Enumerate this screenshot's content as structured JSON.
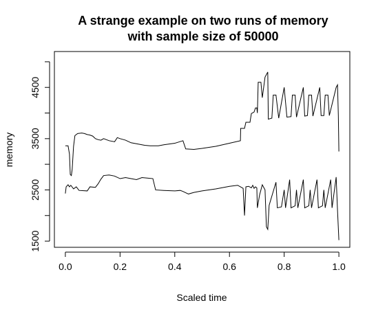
{
  "chart_data": {
    "type": "line",
    "title_lines": [
      "A strange example on two runs of memory",
      "with sample size of 50000"
    ],
    "xlabel": "Scaled time",
    "ylabel": "memory",
    "xlim": [
      -0.04,
      1.04
    ],
    "ylim": [
      1380,
      5200
    ],
    "x_ticks": [
      0.0,
      0.2,
      0.4,
      0.6,
      0.8,
      1.0
    ],
    "x_tick_labels": [
      "0.0",
      "0.2",
      "0.4",
      "0.6",
      "0.8",
      "1.0"
    ],
    "y_ticks": [
      1500,
      2000,
      2500,
      3000,
      3500,
      4000,
      4500,
      5000
    ],
    "y_tick_labels": [
      "1500",
      "",
      "2500",
      "",
      "3500",
      "",
      "4500",
      ""
    ],
    "grid": false,
    "legend": "none",
    "series": [
      {
        "values": [
          [
            0.0,
            3360
          ],
          [
            0.01,
            3360
          ],
          [
            0.015,
            3200
          ],
          [
            0.018,
            2800
          ],
          [
            0.022,
            2780
          ],
          [
            0.025,
            2900
          ],
          [
            0.03,
            3350
          ],
          [
            0.035,
            3560
          ],
          [
            0.045,
            3600
          ],
          [
            0.06,
            3610
          ],
          [
            0.07,
            3600
          ],
          [
            0.08,
            3580
          ],
          [
            0.09,
            3570
          ],
          [
            0.1,
            3550
          ],
          [
            0.11,
            3500
          ],
          [
            0.12,
            3480
          ],
          [
            0.13,
            3470
          ],
          [
            0.14,
            3500
          ],
          [
            0.15,
            3480
          ],
          [
            0.16,
            3460
          ],
          [
            0.18,
            3440
          ],
          [
            0.19,
            3520
          ],
          [
            0.2,
            3500
          ],
          [
            0.22,
            3470
          ],
          [
            0.24,
            3420
          ],
          [
            0.26,
            3400
          ],
          [
            0.29,
            3370
          ],
          [
            0.31,
            3360
          ],
          [
            0.34,
            3360
          ],
          [
            0.36,
            3380
          ],
          [
            0.4,
            3410
          ],
          [
            0.43,
            3460
          ],
          [
            0.44,
            3300
          ],
          [
            0.47,
            3290
          ],
          [
            0.5,
            3310
          ],
          [
            0.55,
            3350
          ],
          [
            0.6,
            3410
          ],
          [
            0.64,
            3460
          ],
          [
            0.641,
            3700
          ],
          [
            0.655,
            3700
          ],
          [
            0.66,
            3820
          ],
          [
            0.675,
            3820
          ],
          [
            0.68,
            3990
          ],
          [
            0.69,
            4020
          ],
          [
            0.695,
            4100
          ],
          [
            0.7,
            4100
          ],
          [
            0.702,
            4000
          ],
          [
            0.705,
            4600
          ],
          [
            0.715,
            4600
          ],
          [
            0.72,
            4300
          ],
          [
            0.73,
            4700
          ],
          [
            0.74,
            4800
          ],
          [
            0.742,
            3880
          ],
          [
            0.755,
            3900
          ],
          [
            0.76,
            4350
          ],
          [
            0.77,
            4350
          ],
          [
            0.78,
            3900
          ],
          [
            0.8,
            4500
          ],
          [
            0.81,
            3920
          ],
          [
            0.825,
            3930
          ],
          [
            0.83,
            4350
          ],
          [
            0.84,
            4350
          ],
          [
            0.845,
            3920
          ],
          [
            0.87,
            4500
          ],
          [
            0.875,
            3940
          ],
          [
            0.885,
            3950
          ],
          [
            0.89,
            4350
          ],
          [
            0.9,
            4350
          ],
          [
            0.905,
            3940
          ],
          [
            0.93,
            4500
          ],
          [
            0.935,
            3950
          ],
          [
            0.945,
            3950
          ],
          [
            0.95,
            4350
          ],
          [
            0.96,
            4350
          ],
          [
            0.965,
            3950
          ],
          [
            0.99,
            4500
          ],
          [
            0.995,
            4550
          ],
          [
            0.998,
            3950
          ],
          [
            1.0,
            3250
          ]
        ]
      },
      {
        "values": [
          [
            0.0,
            2430
          ],
          [
            0.003,
            2560
          ],
          [
            0.01,
            2600
          ],
          [
            0.015,
            2560
          ],
          [
            0.02,
            2590
          ],
          [
            0.03,
            2520
          ],
          [
            0.04,
            2560
          ],
          [
            0.05,
            2490
          ],
          [
            0.08,
            2480
          ],
          [
            0.09,
            2560
          ],
          [
            0.11,
            2550
          ],
          [
            0.12,
            2620
          ],
          [
            0.13,
            2710
          ],
          [
            0.14,
            2780
          ],
          [
            0.16,
            2790
          ],
          [
            0.18,
            2770
          ],
          [
            0.2,
            2720
          ],
          [
            0.22,
            2740
          ],
          [
            0.24,
            2720
          ],
          [
            0.26,
            2700
          ],
          [
            0.28,
            2740
          ],
          [
            0.3,
            2730
          ],
          [
            0.32,
            2720
          ],
          [
            0.33,
            2500
          ],
          [
            0.36,
            2490
          ],
          [
            0.4,
            2480
          ],
          [
            0.42,
            2490
          ],
          [
            0.43,
            2470
          ],
          [
            0.45,
            2420
          ],
          [
            0.47,
            2450
          ],
          [
            0.5,
            2480
          ],
          [
            0.55,
            2520
          ],
          [
            0.6,
            2570
          ],
          [
            0.63,
            2590
          ],
          [
            0.64,
            2560
          ],
          [
            0.65,
            2530
          ],
          [
            0.655,
            2000
          ],
          [
            0.66,
            2560
          ],
          [
            0.67,
            2570
          ],
          [
            0.68,
            2540
          ],
          [
            0.685,
            2590
          ],
          [
            0.69,
            2530
          ],
          [
            0.695,
            2560
          ],
          [
            0.7,
            2540
          ],
          [
            0.702,
            2150
          ],
          [
            0.71,
            2400
          ],
          [
            0.72,
            2600
          ],
          [
            0.73,
            2500
          ],
          [
            0.735,
            1780
          ],
          [
            0.74,
            1730
          ],
          [
            0.745,
            2200
          ],
          [
            0.77,
            2650
          ],
          [
            0.775,
            2150
          ],
          [
            0.79,
            2170
          ],
          [
            0.8,
            2500
          ],
          [
            0.805,
            2150
          ],
          [
            0.82,
            2700
          ],
          [
            0.825,
            2150
          ],
          [
            0.84,
            2190
          ],
          [
            0.845,
            2500
          ],
          [
            0.85,
            2150
          ],
          [
            0.87,
            2700
          ],
          [
            0.875,
            2150
          ],
          [
            0.89,
            2190
          ],
          [
            0.895,
            2500
          ],
          [
            0.9,
            2150
          ],
          [
            0.92,
            2700
          ],
          [
            0.925,
            2150
          ],
          [
            0.94,
            2190
          ],
          [
            0.945,
            2500
          ],
          [
            0.95,
            2150
          ],
          [
            0.97,
            2700
          ],
          [
            0.975,
            2150
          ],
          [
            0.99,
            2750
          ],
          [
            0.995,
            2100
          ],
          [
            1.0,
            1520
          ]
        ]
      }
    ]
  }
}
